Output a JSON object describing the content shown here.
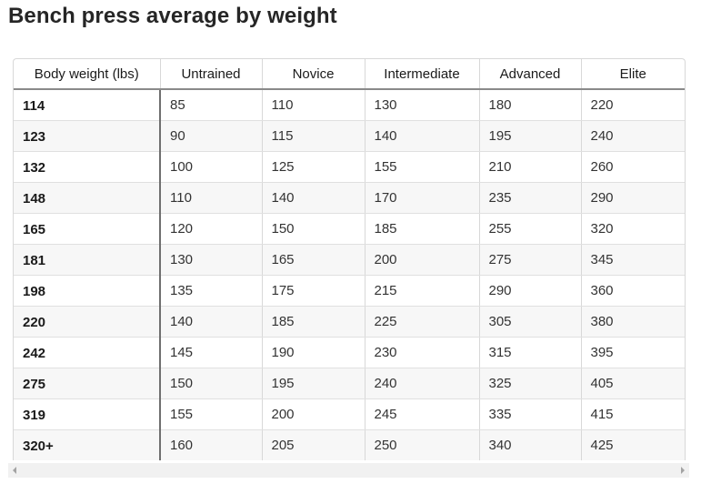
{
  "page": {
    "title": "Bench press average by weight"
  },
  "table": {
    "headers": [
      "Body weight (lbs)",
      "Untrained",
      "Novice",
      "Intermediate",
      "Advanced",
      "Elite"
    ],
    "rows": [
      [
        "114",
        "85",
        "110",
        "130",
        "180",
        "220"
      ],
      [
        "123",
        "90",
        "115",
        "140",
        "195",
        "240"
      ],
      [
        "132",
        "100",
        "125",
        "155",
        "210",
        "260"
      ],
      [
        "148",
        "110",
        "140",
        "170",
        "235",
        "290"
      ],
      [
        "165",
        "120",
        "150",
        "185",
        "255",
        "320"
      ],
      [
        "181",
        "130",
        "165",
        "200",
        "275",
        "345"
      ],
      [
        "198",
        "135",
        "175",
        "215",
        "290",
        "360"
      ],
      [
        "220",
        "140",
        "185",
        "225",
        "305",
        "380"
      ],
      [
        "242",
        "145",
        "190",
        "230",
        "315",
        "395"
      ],
      [
        "275",
        "150",
        "195",
        "240",
        "325",
        "405"
      ],
      [
        "319",
        "155",
        "200",
        "245",
        "335",
        "415"
      ],
      [
        "320+",
        "160",
        "205",
        "250",
        "340",
        "425"
      ]
    ]
  },
  "scrollbar": {
    "left_icon": "scroll-left-arrow-icon",
    "right_icon": "scroll-right-arrow-icon"
  }
}
